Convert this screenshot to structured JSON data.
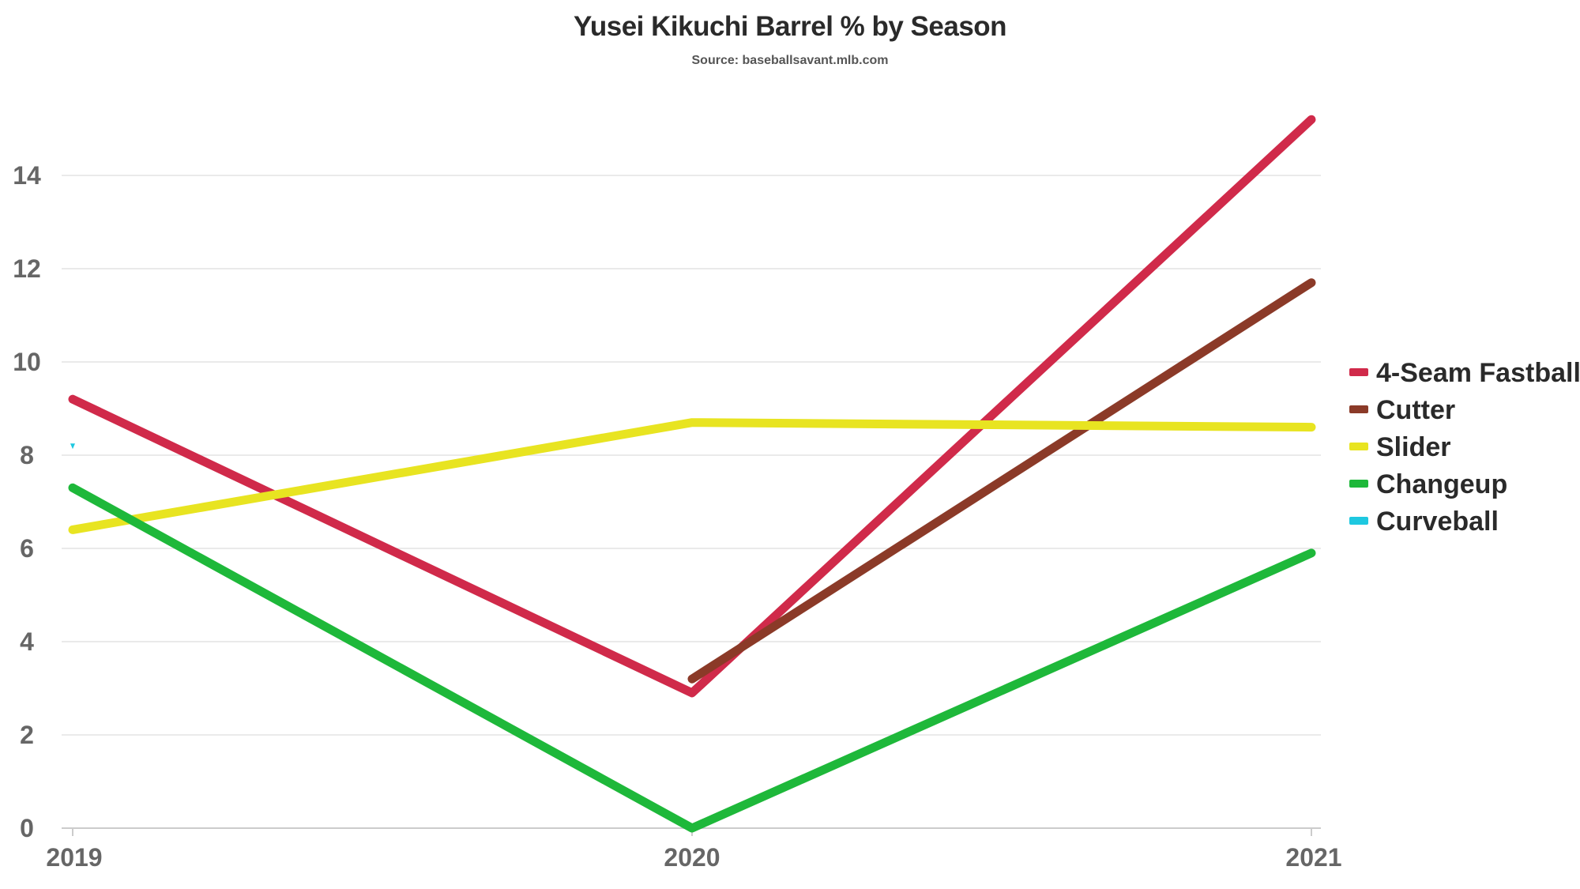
{
  "chart_data": {
    "type": "line",
    "title": "Yusei Kikuchi Barrel % by Season",
    "subtitle": "Source: baseballsavant.mlb.com",
    "xlabel": "",
    "ylabel": "",
    "x": [
      "2019",
      "2020",
      "2021"
    ],
    "ylim": [
      0,
      15.5
    ],
    "yticks": [
      0,
      2,
      4,
      6,
      8,
      10,
      12,
      14
    ],
    "grid": true,
    "legend_position": "right",
    "series": [
      {
        "name": "4-Seam Fastball",
        "color": "#d02a4a",
        "values": [
          9.2,
          2.9,
          15.2
        ]
      },
      {
        "name": "Cutter",
        "color": "#8b3a28",
        "values": [
          null,
          3.2,
          11.7
        ]
      },
      {
        "name": "Slider",
        "color": "#e8e421",
        "values": [
          6.4,
          8.7,
          8.6
        ]
      },
      {
        "name": "Changeup",
        "color": "#1eb83a",
        "values": [
          7.3,
          0.0,
          5.9
        ]
      },
      {
        "name": "Curveball",
        "color": "#1ec8e0",
        "values": [
          8.2,
          null,
          null
        ]
      }
    ]
  }
}
